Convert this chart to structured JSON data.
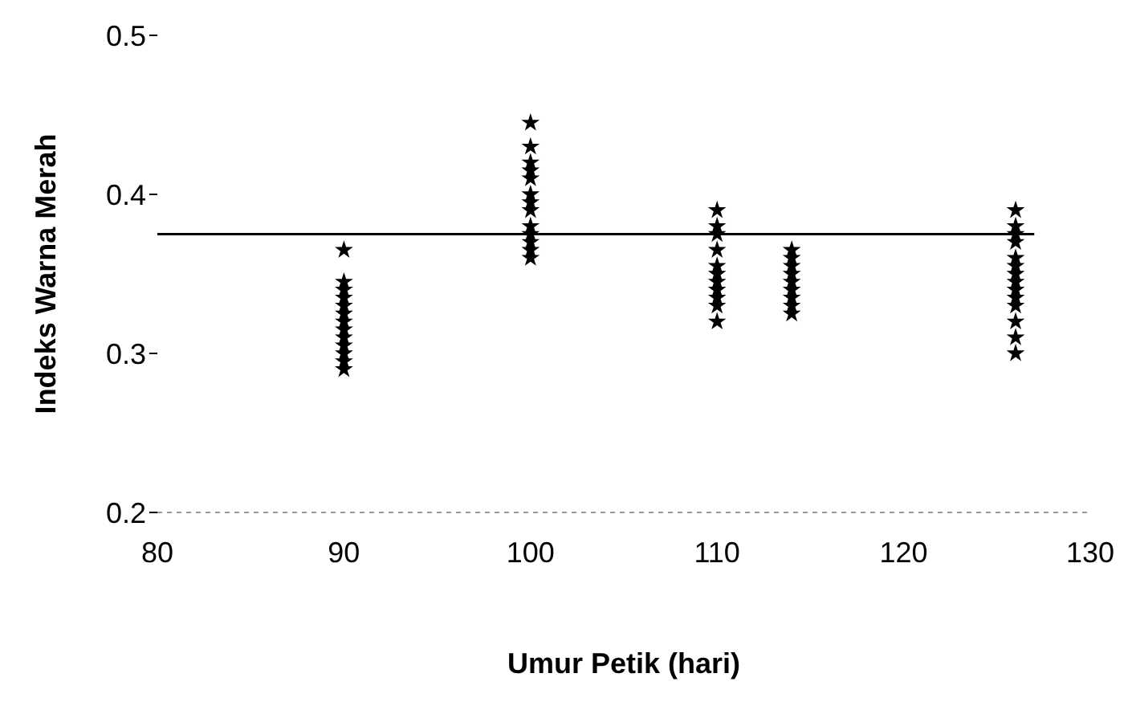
{
  "chart_data": {
    "type": "scatter",
    "xlabel": "Umur Petik (hari)",
    "ylabel": "Indeks Warna Merah",
    "xlim": [
      80,
      130
    ],
    "xticks": [
      80,
      90,
      100,
      110,
      120,
      130
    ],
    "ylim": [
      0.2,
      0.5
    ],
    "yticks": [
      0.2,
      0.3,
      0.4,
      0.5
    ],
    "grid": false,
    "marker": "star",
    "series": [
      {
        "color": "#000000",
        "x": [
          90,
          90,
          90,
          90,
          90,
          90,
          90,
          90,
          90,
          90,
          90,
          90,
          90,
          100,
          100,
          100,
          100,
          100,
          100,
          100,
          100,
          100,
          100,
          100,
          100,
          100,
          110,
          110,
          110,
          110,
          110,
          110,
          110,
          110,
          110,
          110,
          110,
          114,
          114,
          114,
          114,
          114,
          114,
          114,
          114,
          114,
          126,
          126,
          126,
          126,
          126,
          126,
          126,
          126,
          126,
          126,
          126,
          126,
          126,
          126
        ],
        "values": [
          0.365,
          0.345,
          0.34,
          0.335,
          0.33,
          0.325,
          0.32,
          0.315,
          0.31,
          0.305,
          0.3,
          0.295,
          0.29,
          0.445,
          0.43,
          0.42,
          0.415,
          0.41,
          0.4,
          0.395,
          0.39,
          0.38,
          0.375,
          0.37,
          0.365,
          0.36,
          0.39,
          0.38,
          0.375,
          0.365,
          0.355,
          0.35,
          0.345,
          0.34,
          0.335,
          0.33,
          0.32,
          0.365,
          0.36,
          0.355,
          0.35,
          0.345,
          0.34,
          0.335,
          0.33,
          0.325,
          0.39,
          0.38,
          0.375,
          0.37,
          0.36,
          0.355,
          0.35,
          0.345,
          0.34,
          0.335,
          0.33,
          0.32,
          0.31,
          0.3
        ]
      },
      {
        "type": "line",
        "color": "#000000",
        "x": [
          80,
          127
        ],
        "values": [
          0.375,
          0.375
        ],
        "marker": "none"
      }
    ]
  }
}
